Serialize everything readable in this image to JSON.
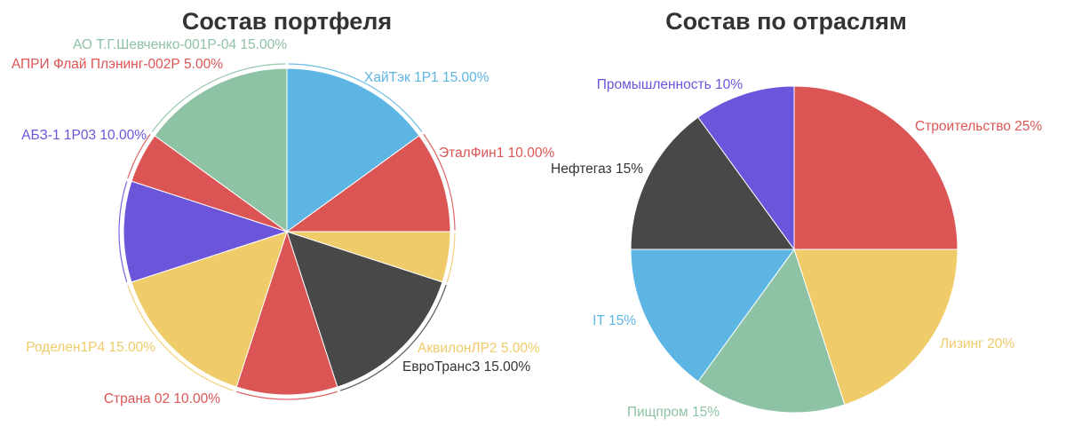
{
  "chart_data": [
    {
      "type": "pie",
      "title": "Состав портфеля",
      "slices": [
        {
          "label": "ХайТэк 1Р1 15.00%",
          "value": 15,
          "color": "#5db5e3"
        },
        {
          "label": "ЭталФин1 10.00%",
          "value": 10,
          "color": "#dc5555"
        },
        {
          "label": "АквилонЛР2 5.00%",
          "value": 5,
          "color": "#efcb69"
        },
        {
          "label": "ЕвроТрансЗ 15.00%",
          "value": 15,
          "color": "#484848"
        },
        {
          "label": "Страна 02 10.00%",
          "value": 10,
          "color": "#dc5555"
        },
        {
          "label": "Роделен1Р4 15.00%",
          "value": 15,
          "color": "#efcb69"
        },
        {
          "label": "АБЗ-1 1Р03 10.00%",
          "value": 10,
          "color": "#6b55db"
        },
        {
          "label": "АПРИ Флай Плэнинг-002Р 5.00%",
          "value": 5,
          "color": "#dc5555"
        },
        {
          "label": "АО Т.Г.Шевченко-001Р-04 15.00%",
          "value": 15,
          "color": "#8ec2a4"
        }
      ]
    },
    {
      "type": "pie",
      "title": "Состав по отраслям",
      "slices": [
        {
          "label": "Строительство 25%",
          "value": 25,
          "color": "#dc5555"
        },
        {
          "label": "Лизинг 20%",
          "value": 20,
          "color": "#efcb69"
        },
        {
          "label": "Пищпром 15%",
          "value": 15,
          "color": "#8ec2a4"
        },
        {
          "label": "IT 15%",
          "value": 15,
          "color": "#5db5e3"
        },
        {
          "label": "Нефтегаз 15%",
          "value": 15,
          "color": "#484848"
        },
        {
          "label": "Промышленность 10%",
          "value": 10,
          "color": "#6b55db"
        }
      ]
    }
  ]
}
